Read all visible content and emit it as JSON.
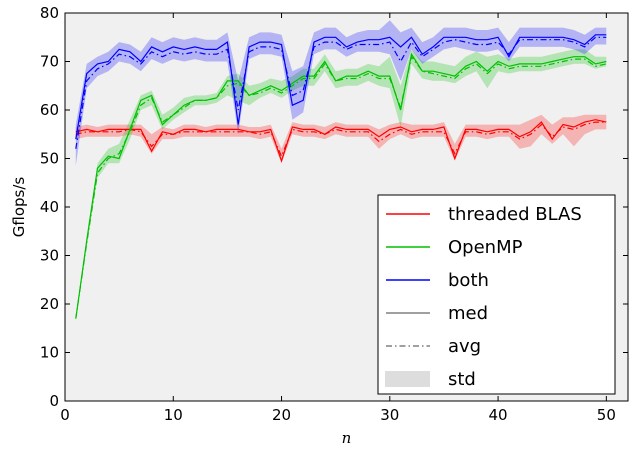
{
  "chart_data": {
    "type": "line",
    "title": "",
    "xlabel": "n",
    "ylabel": "Gflops/s",
    "xlim": [
      0,
      52
    ],
    "ylim": [
      0,
      80
    ],
    "xticks": [
      "0",
      "10",
      "20",
      "30",
      "40",
      "50"
    ],
    "yticks": [
      "0",
      "10",
      "20",
      "30",
      "40",
      "50",
      "60",
      "70",
      "80"
    ],
    "grid": false,
    "background": "#f0f0f0",
    "legend": {
      "placement": "bottom-right",
      "entries": [
        {
          "label": "threaded BLAS",
          "style": "line",
          "color": "#ff0000"
        },
        {
          "label": "OpenMP",
          "style": "line",
          "color": "#00c000"
        },
        {
          "label": "both",
          "style": "line",
          "color": "#0000ff"
        },
        {
          "label": "med",
          "style": "line",
          "color": "#808080"
        },
        {
          "label": "avg",
          "style": "dashdot",
          "color": "#808080"
        },
        {
          "label": "std",
          "style": "patch",
          "color": "#dddddd"
        }
      ]
    },
    "x": [
      1,
      2,
      3,
      4,
      5,
      6,
      7,
      8,
      9,
      10,
      11,
      12,
      13,
      14,
      15,
      16,
      17,
      18,
      19,
      20,
      21,
      22,
      23,
      24,
      25,
      26,
      27,
      28,
      29,
      30,
      31,
      32,
      33,
      34,
      35,
      36,
      37,
      38,
      39,
      40,
      41,
      42,
      43,
      44,
      45,
      46,
      47,
      48,
      49,
      50
    ],
    "series": [
      {
        "name": "threaded BLAS",
        "color": "#ff0000",
        "med": [
          55.5,
          56,
          55.5,
          56,
          56,
          56,
          56,
          51.5,
          55.5,
          55,
          56,
          56,
          55.5,
          56,
          56,
          56,
          55.5,
          55.5,
          56,
          49.5,
          56.5,
          56,
          56,
          55,
          56.5,
          56,
          56,
          56,
          54.5,
          56,
          56.5,
          55.5,
          56,
          56,
          56.5,
          50,
          56,
          56,
          55.5,
          56,
          56,
          54.5,
          55.5,
          57.5,
          54,
          57,
          56.5,
          57.5,
          58,
          57.5
        ],
        "avg": [
          55,
          55.5,
          55.5,
          55.5,
          55.5,
          56,
          55.5,
          52.5,
          55,
          55,
          55.5,
          55.5,
          55.5,
          55.5,
          55.5,
          55.5,
          55.5,
          55,
          55.5,
          50.5,
          56,
          55.5,
          55.5,
          55,
          56,
          55.5,
          55.5,
          55.5,
          53.5,
          55,
          56,
          55,
          55.5,
          55.5,
          55.5,
          51,
          55.5,
          55.5,
          55,
          55.5,
          55.5,
          54,
          55,
          57,
          54.5,
          56.5,
          56,
          57,
          57.5,
          57.5
        ],
        "std_lo": [
          54,
          54.5,
          54.5,
          54.5,
          54.5,
          55,
          54.5,
          51,
          54,
          54,
          54.5,
          54.5,
          54.5,
          54.5,
          54.5,
          54.5,
          54.5,
          54,
          54.5,
          49,
          55,
          54.5,
          54.5,
          54,
          55,
          54.5,
          54.5,
          54.5,
          52,
          54,
          55,
          54,
          54.5,
          54.5,
          54.5,
          49.5,
          54.5,
          54.5,
          54,
          54.5,
          54.5,
          52,
          52.5,
          55,
          53,
          55,
          52.5,
          55,
          56,
          56
        ],
        "std_hi": [
          56.5,
          57,
          56.5,
          57,
          57,
          57,
          57,
          55,
          56.5,
          56,
          57,
          57,
          56.5,
          57,
          57,
          57,
          56.5,
          56.5,
          57,
          52,
          57.5,
          57,
          57,
          56.5,
          57.5,
          57,
          57,
          57,
          56,
          57,
          57.5,
          57,
          57,
          57,
          57.5,
          53,
          57,
          57,
          57,
          57,
          57,
          57,
          58,
          59,
          57,
          58.5,
          58.5,
          59,
          59,
          59
        ]
      },
      {
        "name": "OpenMP",
        "color": "#00c000",
        "med": [
          17,
          33,
          48,
          50.5,
          50,
          56,
          62,
          63,
          57,
          59,
          61,
          62,
          62,
          62.5,
          66,
          66,
          63,
          64,
          65,
          64,
          65.5,
          67,
          67,
          70,
          66,
          67,
          67,
          68,
          67,
          67,
          60,
          71.5,
          68,
          68,
          67.5,
          67,
          69,
          70,
          68,
          70,
          69,
          69.5,
          69.5,
          69.5,
          70,
          70.5,
          71,
          71,
          69.5,
          70
        ],
        "avg": [
          17,
          32.5,
          47,
          50,
          51,
          55.5,
          61,
          62.5,
          57.5,
          59,
          60.5,
          62,
          62,
          62.5,
          65,
          65.5,
          63,
          63.5,
          64.5,
          63.5,
          65,
          66.5,
          66.5,
          69.5,
          66,
          66.5,
          66.5,
          67.5,
          66.5,
          66.5,
          60.5,
          71,
          68,
          67.5,
          67,
          66.5,
          68.5,
          69.5,
          67.5,
          69.5,
          68.5,
          69,
          69,
          69,
          69.5,
          70,
          70.5,
          70.5,
          69,
          69.5
        ],
        "std_lo": [
          16.5,
          32,
          46,
          49,
          49,
          54,
          60,
          61,
          56,
          58,
          59.5,
          61,
          61,
          61.5,
          63,
          62,
          61,
          62.5,
          63.5,
          62.5,
          64,
          65,
          65,
          68,
          64.5,
          65,
          65,
          66,
          65,
          64.5,
          56.5,
          69.5,
          66.5,
          66,
          66,
          65.5,
          67,
          68,
          64.5,
          68,
          67.5,
          68,
          68,
          68,
          68.5,
          69,
          69.5,
          69.5,
          68.5,
          69
        ],
        "std_hi": [
          17.5,
          34,
          49,
          52,
          53,
          58,
          63,
          64,
          59,
          60.5,
          62.5,
          63,
          63,
          63.5,
          67,
          67.5,
          65,
          65.5,
          66.5,
          66,
          67,
          68.5,
          68.5,
          71.5,
          68,
          68.5,
          68.5,
          69.5,
          69,
          71,
          65,
          72.5,
          70,
          70,
          69.5,
          69,
          71,
          72,
          71,
          71.5,
          70.5,
          71,
          71,
          71,
          71.5,
          72,
          72.5,
          72.5,
          71,
          71
        ]
      },
      {
        "name": "both",
        "color": "#0000ff",
        "med": [
          54,
          67.5,
          69.5,
          70,
          72.5,
          72,
          70,
          73,
          72,
          73,
          72.5,
          73,
          72.5,
          72.5,
          74,
          57,
          73,
          74,
          74,
          73.5,
          61,
          62,
          74,
          75,
          75,
          73,
          74,
          74.5,
          74.5,
          75,
          73,
          75,
          71.5,
          73,
          75,
          75,
          75,
          74.5,
          74.5,
          75,
          71,
          75,
          75,
          75,
          75,
          75,
          74.5,
          73.5,
          75.5,
          75.5
        ],
        "avg": [
          52,
          66,
          68.5,
          69.5,
          71.5,
          71,
          69.5,
          72,
          71,
          72,
          71.5,
          72,
          71.5,
          71.5,
          72.5,
          60,
          72,
          73,
          73,
          72.5,
          63,
          64,
          73,
          74,
          74,
          72.5,
          73.5,
          73.5,
          73.5,
          74,
          70,
          74,
          71,
          72.5,
          74,
          74.5,
          74,
          73.5,
          73.5,
          74,
          71.5,
          74.5,
          74.5,
          74.5,
          74.5,
          74.5,
          74,
          73,
          75,
          75
        ],
        "std_lo": [
          48.5,
          64.5,
          67,
          68,
          70,
          69.5,
          68,
          70.5,
          69.5,
          70.5,
          70,
          70.5,
          70,
          70,
          70,
          55,
          70.5,
          71.5,
          71.5,
          71,
          58,
          59.5,
          71.5,
          72.5,
          72.5,
          71,
          72,
          72,
          72,
          71.5,
          66,
          72.5,
          69.5,
          71,
          72.5,
          73,
          72.5,
          72,
          72,
          72.5,
          70,
          73,
          73,
          73,
          73,
          73,
          72.5,
          71.5,
          73.5,
          73.5
        ],
        "std_hi": [
          57,
          69.5,
          71,
          72,
          74,
          73.5,
          72,
          75,
          74,
          75,
          74.5,
          75,
          74.5,
          74.5,
          76,
          66,
          75,
          76,
          76,
          75.5,
          68,
          69,
          76,
          77,
          77,
          75,
          76,
          76.5,
          76.5,
          78.5,
          76,
          77,
          74,
          75,
          77,
          77,
          77,
          76.5,
          76.5,
          77,
          74,
          77,
          77,
          77,
          77,
          77,
          76.5,
          75.5,
          77,
          77
        ]
      }
    ]
  }
}
